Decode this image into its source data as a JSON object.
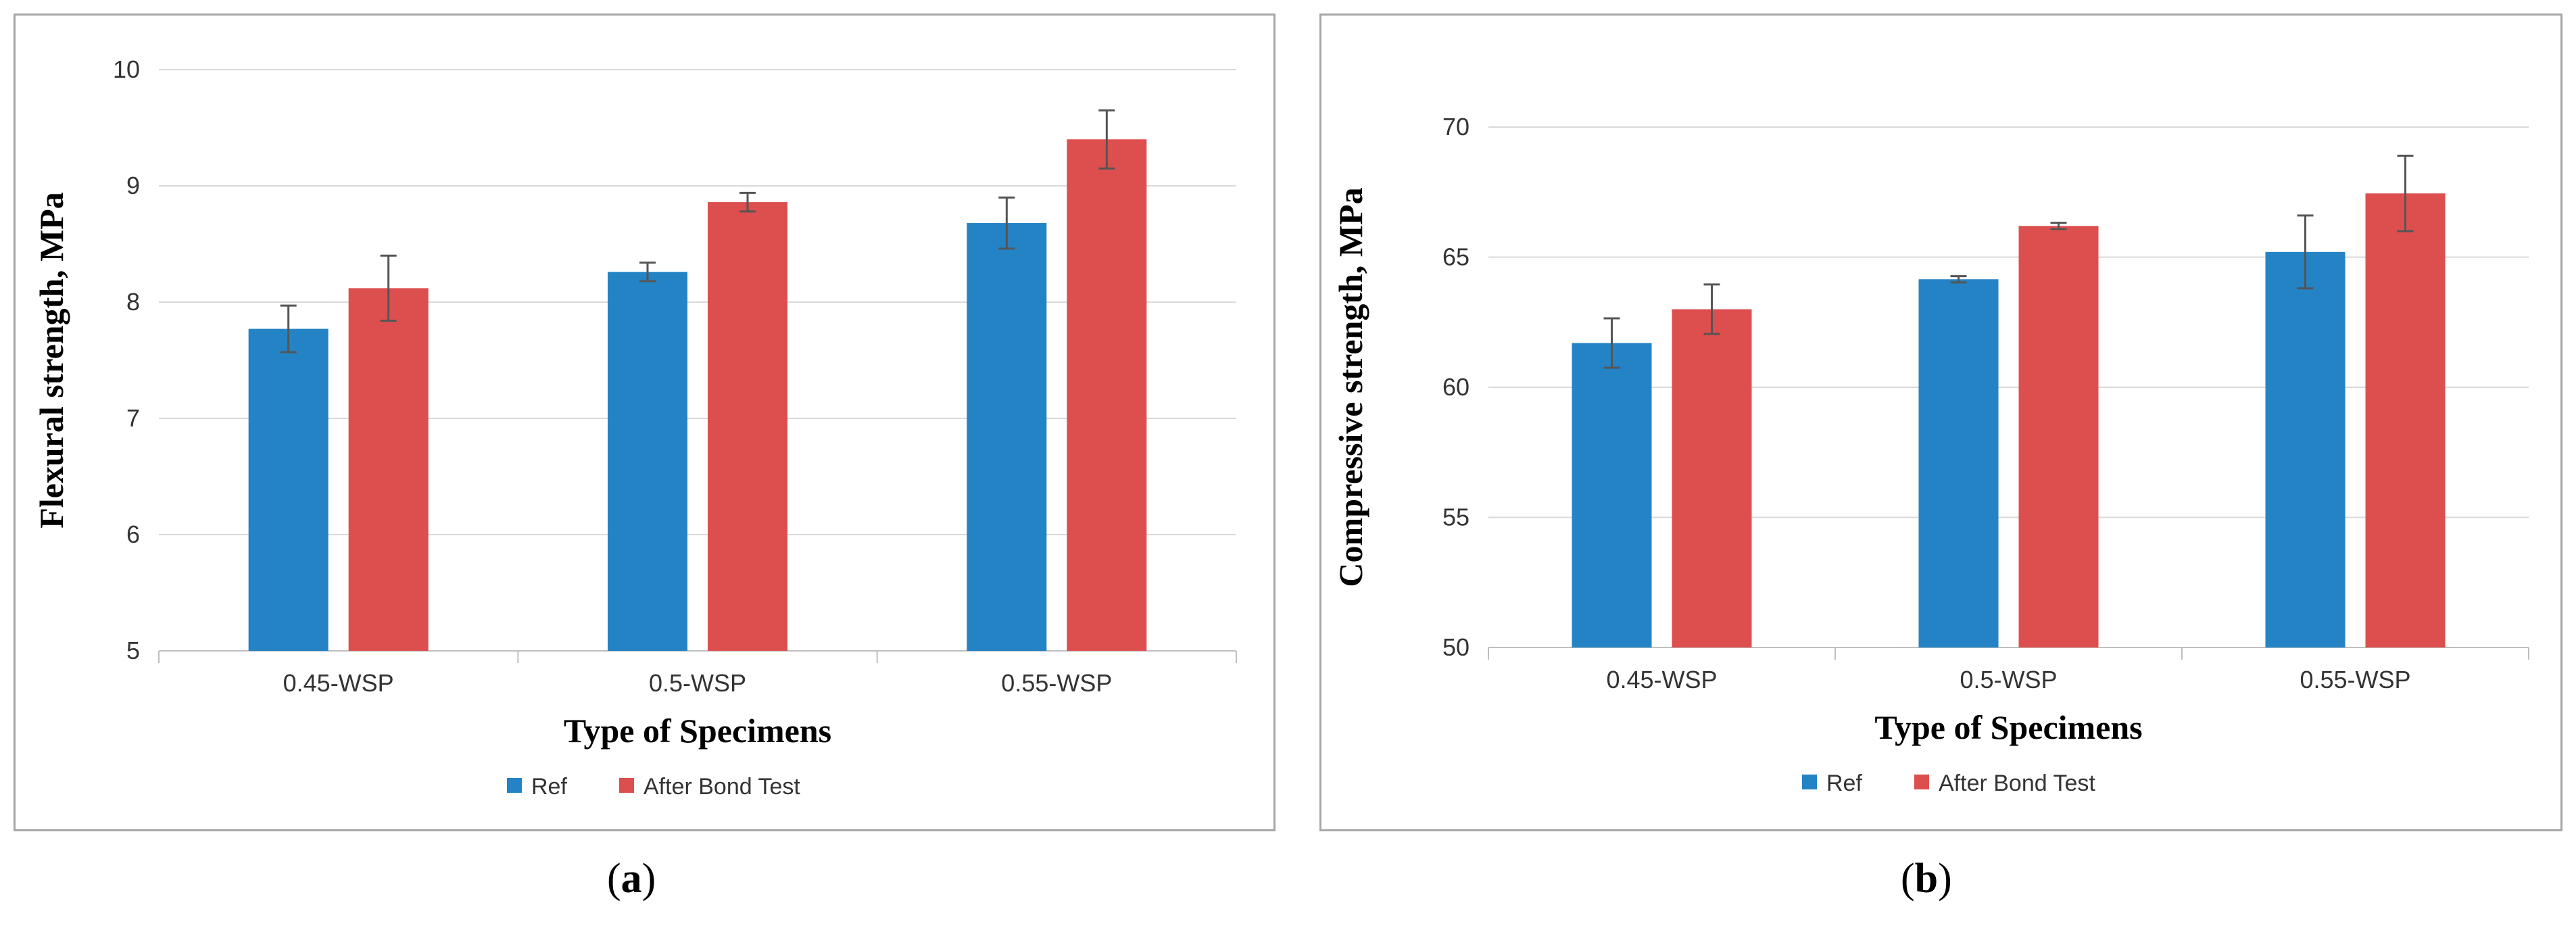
{
  "chart_data": [
    {
      "type": "bar",
      "panel_label": "a",
      "title": "",
      "xlabel": "Type of Specimens",
      "ylabel": "Flexural strength, MPa",
      "categories": [
        "0.45-WSP",
        "0.5-WSP",
        "0.55-WSP"
      ],
      "ylim": [
        5,
        10
      ],
      "yticks": [
        5,
        6,
        7,
        8,
        9,
        10
      ],
      "grid": true,
      "legend_position": "bottom",
      "series": [
        {
          "name": "Ref",
          "color": "#2483c5",
          "values": [
            7.77,
            8.26,
            8.68
          ],
          "errors": [
            0.2,
            0.08,
            0.22
          ]
        },
        {
          "name": "After Bond Test",
          "color": "#dc4f4e",
          "values": [
            8.12,
            8.86,
            9.4
          ],
          "errors": [
            0.28,
            0.08,
            0.25
          ]
        }
      ]
    },
    {
      "type": "bar",
      "panel_label": "b",
      "title": "",
      "xlabel": "Type of Specimens",
      "ylabel": "Compressive strength, MPa",
      "categories": [
        "0.45-WSP",
        "0.5-WSP",
        "0.55-WSP"
      ],
      "ylim": [
        50,
        70
      ],
      "yticks": [
        50,
        55,
        60,
        65,
        70
      ],
      "grid": true,
      "legend_position": "bottom",
      "series": [
        {
          "name": "Ref",
          "color": "#2483c5",
          "values": [
            61.7,
            64.15,
            65.2
          ],
          "errors": [
            0.95,
            0.12,
            1.4
          ]
        },
        {
          "name": "After Bond Test",
          "color": "#dc4f4e",
          "values": [
            63.0,
            66.2,
            67.45
          ],
          "errors": [
            0.95,
            0.12,
            1.45
          ]
        }
      ]
    }
  ]
}
